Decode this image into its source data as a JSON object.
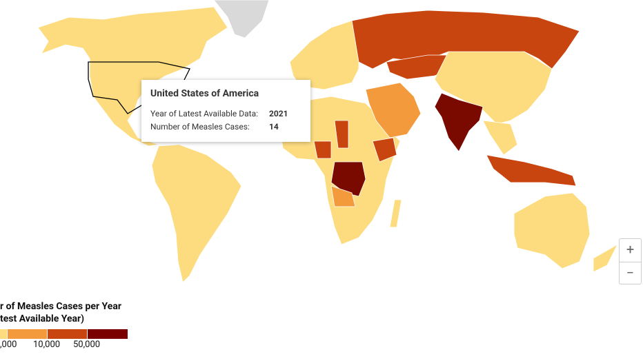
{
  "tooltip": {
    "title": "United States of America",
    "rows": [
      {
        "label": "Year of Latest Available Data:",
        "value": "2021"
      },
      {
        "label": "Number of Measles Cases:",
        "value": "14"
      }
    ]
  },
  "legend": {
    "title": [
      "r of Measles Cases per Year",
      "test Available Year)"
    ],
    "labels": [
      ",000",
      "10,000",
      "50,000"
    ]
  },
  "zoom": {
    "in": "+",
    "out": "−"
  }
}
